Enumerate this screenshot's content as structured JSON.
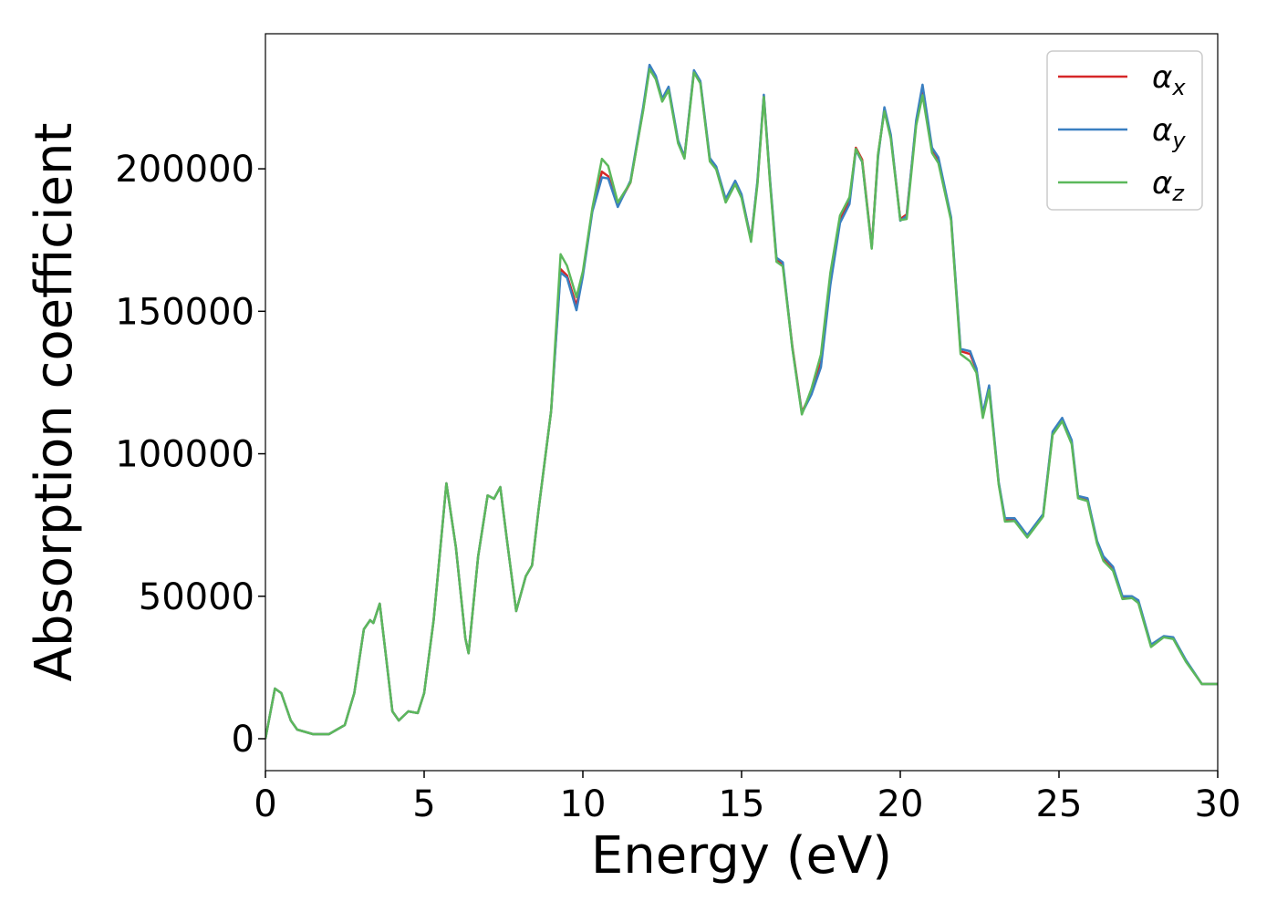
{
  "chart_data": {
    "type": "line",
    "x_label": "Energy (eV)",
    "y_label": "Absorption coefficient",
    "x": [
      0,
      0.3,
      0.5,
      0.8,
      1.0,
      1.5,
      2.0,
      2.5,
      2.8,
      3.1,
      3.3,
      3.4,
      3.6,
      3.8,
      4.0,
      4.2,
      4.5,
      4.8,
      5.0,
      5.3,
      5.7,
      6.0,
      6.3,
      6.4,
      6.7,
      7.0,
      7.2,
      7.4,
      7.6,
      7.9,
      8.2,
      8.4,
      8.6,
      9.0,
      9.3,
      9.5,
      9.8,
      10.0,
      10.3,
      10.6,
      10.8,
      11.1,
      11.5,
      11.9,
      12.1,
      12.3,
      12.5,
      12.7,
      13.0,
      13.2,
      13.5,
      13.7,
      14.0,
      14.2,
      14.5,
      14.8,
      15.0,
      15.3,
      15.5,
      15.7,
      15.9,
      16.1,
      16.3,
      16.6,
      16.9,
      17.2,
      17.5,
      17.8,
      18.1,
      18.4,
      18.6,
      18.8,
      19.1,
      19.3,
      19.5,
      19.7,
      20.0,
      20.2,
      20.5,
      20.7,
      21.0,
      21.2,
      21.6,
      21.9,
      22.2,
      22.4,
      22.6,
      22.8,
      23.1,
      23.3,
      23.6,
      24.0,
      24.5,
      24.8,
      25.1,
      25.4,
      25.6,
      25.9,
      26.2,
      26.4,
      26.7,
      27.0,
      27.3,
      27.5,
      27.9,
      28.3,
      28.6,
      29.0,
      29.5,
      30.0
    ],
    "series": [
      {
        "name": "αx",
        "color": "#d62728",
        "values": [
          0,
          17600,
          16000,
          6400,
          3200,
          1600,
          1600,
          4800,
          16000,
          38400,
          41600,
          40600,
          47400,
          28800,
          9600,
          6400,
          9600,
          9000,
          16000,
          41600,
          89600,
          67200,
          35200,
          30000,
          64000,
          85400,
          84200,
          88300,
          70400,
          44800,
          57000,
          60800,
          80000,
          115000,
          164800,
          162600,
          152000,
          163200,
          185600,
          199000,
          197400,
          187200,
          195200,
          220800,
          235800,
          232000,
          224000,
          228200,
          209600,
          204200,
          234200,
          230400,
          203200,
          200000,
          188800,
          195200,
          190400,
          175400,
          195200,
          225600,
          195200,
          168000,
          166400,
          137600,
          114600,
          121600,
          132000,
          160600,
          182400,
          188800,
          207400,
          203200,
          172800,
          204800,
          220800,
          211200,
          182400,
          184000,
          216000,
          228800,
          206400,
          203200,
          182400,
          136000,
          135000,
          129600,
          113600,
          123200,
          89600,
          76800,
          76800,
          71000,
          78400,
          107200,
          112000,
          104000,
          84800,
          83800,
          68800,
          63400,
          59800,
          49600,
          49600,
          48000,
          32600,
          35800,
          35200,
          27200,
          19200,
          19200
        ]
      },
      {
        "name": "αy",
        "color": "#3a7fc1",
        "values": [
          0,
          17600,
          16000,
          6400,
          3200,
          1600,
          1600,
          4800,
          16000,
          38400,
          41600,
          40600,
          47400,
          28800,
          9600,
          6400,
          9600,
          9000,
          16000,
          41600,
          89600,
          67200,
          35200,
          30000,
          64000,
          85400,
          84200,
          88300,
          70400,
          44800,
          57000,
          60800,
          80000,
          115000,
          163600,
          161800,
          150400,
          162400,
          185000,
          197000,
          196600,
          186600,
          195800,
          221600,
          236500,
          232600,
          224600,
          228800,
          210000,
          204200,
          234600,
          230800,
          203800,
          200800,
          189400,
          195800,
          191000,
          175000,
          195800,
          226000,
          195800,
          168800,
          167200,
          137000,
          114200,
          120800,
          130400,
          159400,
          181000,
          187600,
          206600,
          202400,
          172400,
          204000,
          221600,
          212000,
          181800,
          183400,
          217000,
          229500,
          207400,
          204000,
          183000,
          136800,
          136000,
          130000,
          114200,
          124000,
          90000,
          77400,
          77400,
          71400,
          78800,
          107800,
          112600,
          104800,
          85200,
          84400,
          69400,
          64000,
          60400,
          50000,
          50000,
          48600,
          33000,
          36000,
          35600,
          27600,
          19200,
          19200
        ]
      },
      {
        "name": "αz",
        "color": "#5cb85c",
        "values": [
          0,
          17600,
          16000,
          6400,
          3200,
          1600,
          1600,
          4800,
          16000,
          38400,
          41600,
          40600,
          47400,
          28800,
          9600,
          6400,
          9600,
          9000,
          16000,
          41600,
          89600,
          67200,
          35200,
          30000,
          64000,
          85400,
          84200,
          88300,
          70400,
          44800,
          57000,
          60800,
          80000,
          115000,
          170000,
          166000,
          155000,
          164000,
          186200,
          203500,
          201000,
          188200,
          195200,
          220400,
          235000,
          231400,
          223600,
          227600,
          209000,
          203600,
          233800,
          230000,
          202600,
          199800,
          188200,
          194600,
          189800,
          174400,
          194600,
          225200,
          194600,
          167400,
          165800,
          137000,
          113800,
          122800,
          134800,
          163600,
          183600,
          190000,
          207000,
          202600,
          172000,
          205200,
          220200,
          210600,
          182000,
          182400,
          215200,
          225800,
          205600,
          202000,
          181800,
          135000,
          132400,
          128400,
          112600,
          122400,
          89200,
          76200,
          76400,
          70600,
          78000,
          106600,
          111400,
          103400,
          84400,
          83400,
          68400,
          62400,
          59000,
          49000,
          49400,
          47600,
          32200,
          35600,
          35000,
          27000,
          19200,
          19200
        ]
      }
    ],
    "xlim": [
      0,
      30
    ],
    "xticks": [
      0,
      5,
      10,
      15,
      20,
      25,
      30
    ],
    "ylim": [
      -11200,
      247400
    ],
    "yticks": [
      0,
      50000,
      100000,
      150000,
      200000
    ],
    "legend": "upper right",
    "grid": false
  }
}
